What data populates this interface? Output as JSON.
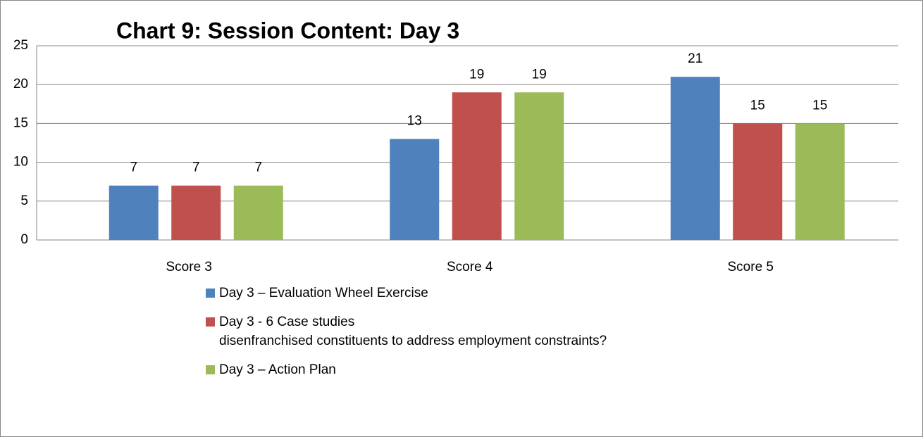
{
  "chart_data": {
    "type": "bar",
    "title": "Chart 9: Session Content: Day 3",
    "categories": [
      "Score 3",
      "Score 4",
      "Score 5"
    ],
    "series": [
      {
        "name": "Day 3 – Evaluation Wheel Exercise",
        "color": "#4f81bd",
        "values": [
          7,
          13,
          21
        ]
      },
      {
        "name": "Day 3 - 6 Case studies\ndisenfranchised constituents to address employment constraints?",
        "color": "#c0504d",
        "values": [
          7,
          19,
          15
        ]
      },
      {
        "name": "Day 3 – Action Plan",
        "color": "#9bbb59",
        "values": [
          7,
          19,
          15
        ]
      }
    ],
    "ylim": [
      0,
      25
    ],
    "yticks": [
      0,
      5,
      10,
      15,
      20,
      25
    ],
    "grid": true,
    "legend": "bottom"
  }
}
